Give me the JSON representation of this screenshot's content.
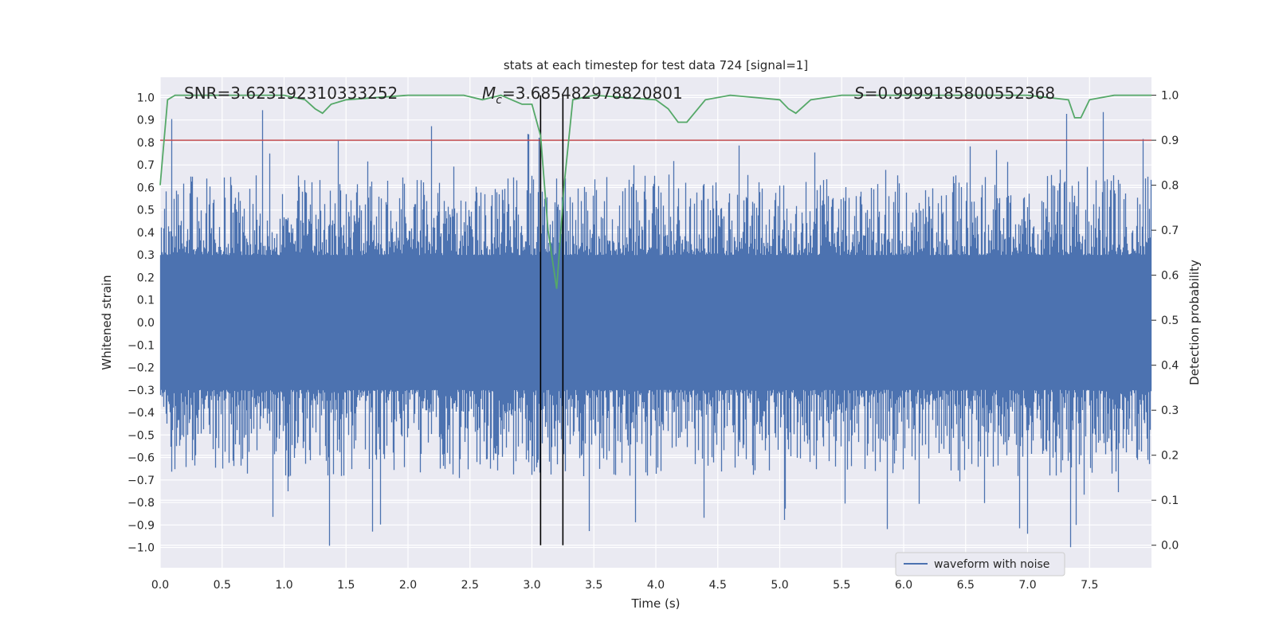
{
  "chart_data": {
    "type": "line",
    "title": "stats at each timestep for test data 724 [signal=1]",
    "xlabel": "Time (s)",
    "ylabel_left": "Whitened strain",
    "ylabel_right": "Detection probability",
    "xlim": [
      0.0,
      8.0
    ],
    "ylim_left": [
      -1.09,
      1.09
    ],
    "ylim_right": [
      -0.05,
      1.04
    ],
    "x_ticks": [
      "0.0",
      "0.5",
      "1.0",
      "1.5",
      "2.0",
      "2.5",
      "3.0",
      "3.5",
      "4.0",
      "4.5",
      "5.0",
      "5.5",
      "6.0",
      "6.5",
      "7.0",
      "7.5"
    ],
    "y_ticks_left": [
      "1.0",
      "0.9",
      "0.8",
      "0.7",
      "0.6",
      "0.5",
      "0.4",
      "0.3",
      "0.2",
      "0.1",
      "0.0",
      "−0.1",
      "−0.2",
      "−0.3",
      "−0.4",
      "−0.5",
      "−0.6",
      "−0.7",
      "−0.8",
      "−0.9",
      "−1.0"
    ],
    "y_ticks_right": [
      "1.0",
      "0.9",
      "0.8",
      "0.7",
      "0.6",
      "0.5",
      "0.4",
      "0.3",
      "0.2",
      "0.1",
      "0.0"
    ],
    "grid": true,
    "legend": {
      "placement": "lower-right",
      "entries": [
        "waveform with noise"
      ]
    },
    "annotations": {
      "snr": "SNR=3.623192310333252",
      "mc_symbol": "M",
      "mc_sub": "c",
      "mc_value": "=3.685482978820801",
      "s_symbol": "S",
      "s_value": "=0.9999185800552368"
    },
    "threshold_right": 0.9,
    "vertical_lines_x": [
      3.07,
      3.25
    ],
    "waveform": {
      "name": "waveform with noise",
      "x_range": [
        0.0,
        8.0
      ],
      "typical_amplitude": 0.3,
      "peak_max": 0.95,
      "peak_min": -1.0
    },
    "probability_series": {
      "x": [
        0.0,
        0.06,
        0.12,
        0.5,
        1.0,
        1.17,
        1.25,
        1.31,
        1.38,
        1.5,
        2.0,
        2.45,
        2.6,
        2.75,
        2.92,
        3.0,
        3.07,
        3.13,
        3.2,
        3.26,
        3.33,
        3.5,
        4.0,
        4.1,
        4.18,
        4.25,
        4.4,
        4.6,
        5.0,
        5.07,
        5.13,
        5.25,
        5.5,
        6.0,
        7.0,
        7.33,
        7.38,
        7.43,
        7.5,
        7.7,
        8.0
      ],
      "y": [
        0.8,
        0.99,
        1.0,
        1.0,
        1.0,
        0.99,
        0.97,
        0.96,
        0.98,
        0.99,
        1.0,
        1.0,
        0.99,
        1.0,
        0.98,
        0.98,
        0.91,
        0.7,
        0.57,
        0.8,
        0.99,
        1.0,
        0.99,
        0.97,
        0.94,
        0.94,
        0.99,
        1.0,
        0.99,
        0.97,
        0.96,
        0.99,
        1.0,
        1.0,
        1.0,
        0.99,
        0.95,
        0.95,
        0.99,
        1.0,
        1.0
      ]
    },
    "colors": {
      "waveform": "#4c72b0",
      "probability": "#55a868",
      "threshold": "#c44e52",
      "vertical_lines": "#000000",
      "plot_background": "#eaeaf2",
      "grid": "#ffffff"
    }
  }
}
